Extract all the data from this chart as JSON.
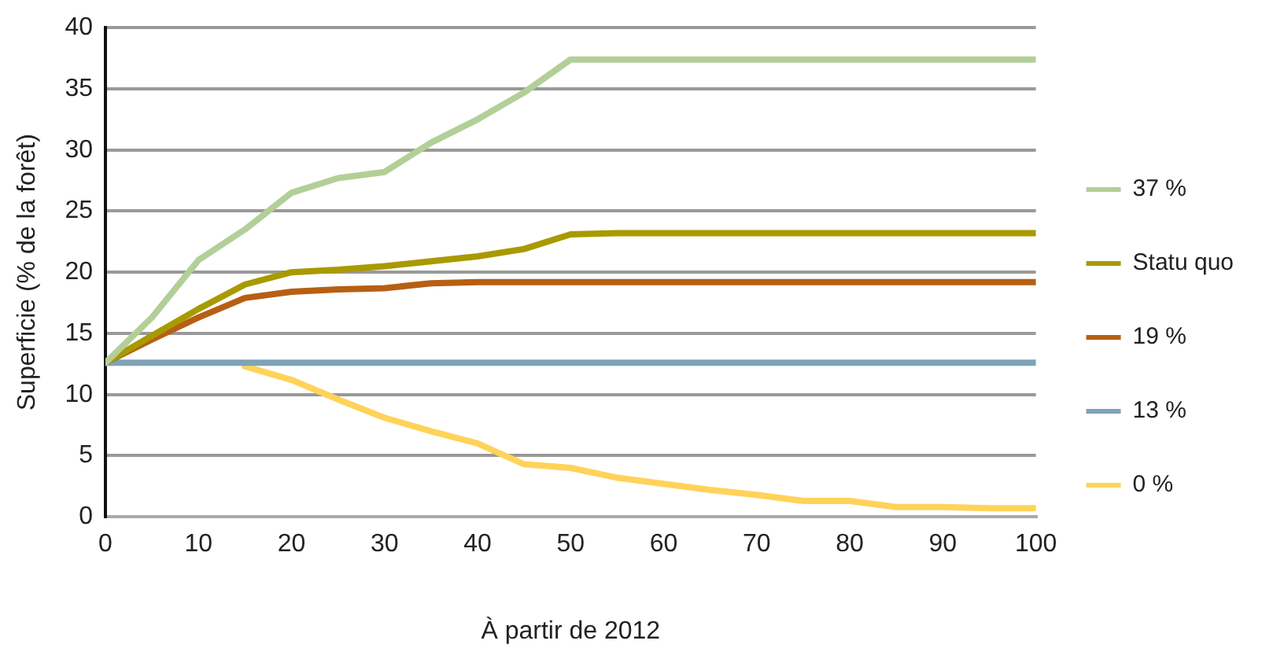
{
  "chart_data": {
    "type": "line",
    "xlabel": "À partir de 2012",
    "ylabel": "Superficie (% de la forêt)",
    "x": [
      0,
      5,
      10,
      15,
      20,
      25,
      30,
      35,
      40,
      45,
      50,
      55,
      60,
      65,
      70,
      75,
      80,
      85,
      90,
      95,
      100
    ],
    "xlim": [
      0,
      100
    ],
    "xticks": [
      0,
      10,
      20,
      30,
      40,
      50,
      60,
      70,
      80,
      90,
      100
    ],
    "ylim": [
      0,
      40
    ],
    "yticks": [
      0,
      5,
      10,
      15,
      20,
      25,
      30,
      35,
      40
    ],
    "grid": "y",
    "legend": "right",
    "marker": "none",
    "line_style": "solid",
    "series": [
      {
        "name": "37 %",
        "color": "#b3cf98",
        "values": [
          12.6,
          16.3,
          21,
          23.5,
          26.5,
          27.7,
          28.2,
          30.6,
          32.5,
          34.7,
          37.4,
          37.4,
          37.4,
          37.4,
          37.4,
          37.4,
          37.4,
          37.4,
          37.4,
          37.4,
          37.4
        ]
      },
      {
        "name": "Statu quo",
        "color": "#a89a00",
        "values": [
          12.6,
          14.8,
          17,
          19,
          20,
          20.2,
          20.5,
          20.9,
          21.3,
          21.9,
          23.1,
          23.2,
          23.2,
          23.2,
          23.2,
          23.2,
          23.2,
          23.2,
          23.2,
          23.2,
          23.2
        ]
      },
      {
        "name": "19 %",
        "color": "#b75f14",
        "values": [
          12.6,
          14.5,
          16.3,
          17.9,
          18.4,
          18.6,
          18.7,
          19.1,
          19.2,
          19.2,
          19.2,
          19.2,
          19.2,
          19.2,
          19.2,
          19.2,
          19.2,
          19.2,
          19.2,
          19.2,
          19.2
        ]
      },
      {
        "name": "13 %",
        "color": "#7fa3b8",
        "values": [
          12.6,
          12.6,
          12.6,
          12.6,
          12.6,
          12.6,
          12.6,
          12.6,
          12.6,
          12.6,
          12.6,
          12.6,
          12.6,
          12.6,
          12.6,
          12.6,
          12.6,
          12.6,
          12.6,
          12.6,
          12.6
        ]
      },
      {
        "name": "0 %",
        "color": "#ffd35a",
        "values": [
          null,
          null,
          null,
          12.3,
          11.2,
          9.6,
          8.1,
          7.0,
          6.0,
          4.3,
          4.0,
          3.2,
          2.7,
          2.2,
          1.8,
          1.3,
          1.3,
          0.8,
          0.8,
          0.7,
          0.7
        ]
      }
    ]
  }
}
